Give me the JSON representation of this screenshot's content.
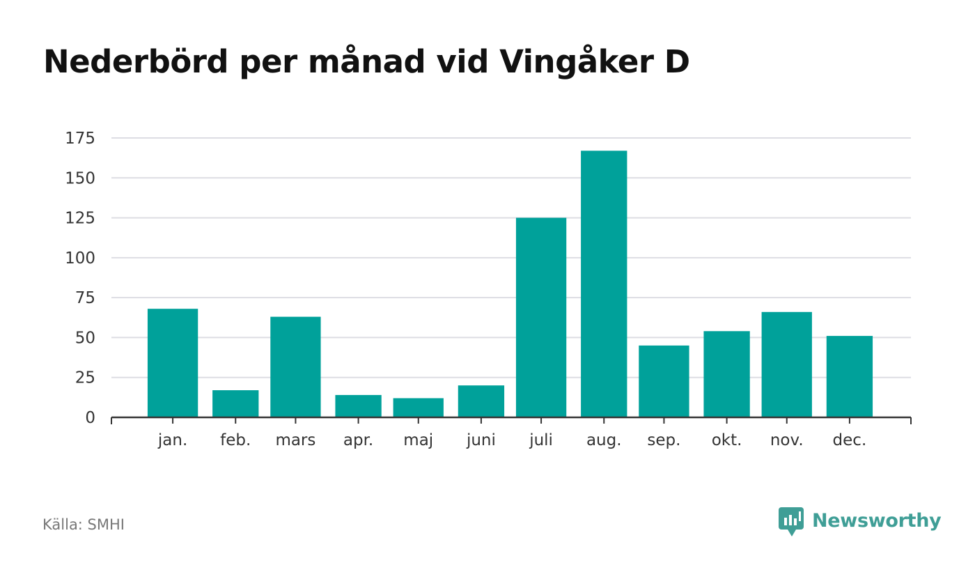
{
  "title": "Nederbörd per månad vid Vingåker D",
  "source": "Källa: SMHI",
  "brand": "Newsworthy",
  "colors": {
    "bar": "#00a19a",
    "grid": "#dddde3",
    "axis": "#333333",
    "brand": "#3f9e96"
  },
  "chart_data": {
    "type": "bar",
    "title": "Nederbörd per månad vid Vingåker D",
    "categories": [
      "jan.",
      "feb.",
      "mars",
      "apr.",
      "maj",
      "juni",
      "juli",
      "aug.",
      "sep.",
      "okt.",
      "nov.",
      "dec."
    ],
    "values": [
      68,
      17,
      63,
      14,
      12,
      20,
      125,
      167,
      45,
      54,
      66,
      51
    ],
    "ylim": [
      0,
      175
    ],
    "yticks": [
      0,
      25,
      50,
      75,
      100,
      125,
      150,
      175
    ],
    "xlabel": "",
    "ylabel": "",
    "grid": true,
    "legend": "none"
  }
}
